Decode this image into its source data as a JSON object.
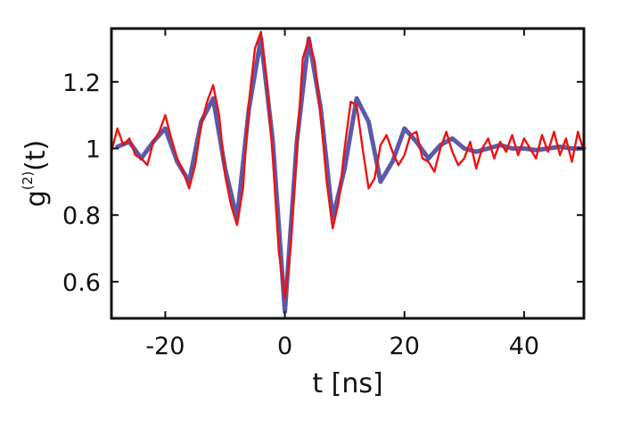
{
  "chart_data": {
    "type": "line",
    "xlabel": "t [ns]",
    "ylabel": {
      "base": "g",
      "superscript": "(2)",
      "suffix": "(t)"
    },
    "xlim": [
      -29,
      50
    ],
    "ylim": [
      0.49,
      1.36
    ],
    "xticks": [
      -20,
      0,
      20,
      40
    ],
    "yticks": [
      0.6,
      0.8,
      1.0,
      1.2
    ],
    "xtick_labels": [
      "-20",
      "0",
      "20",
      "40"
    ],
    "ytick_labels": [
      "0.6",
      "0.8",
      "1",
      "1.2"
    ],
    "grid": false,
    "series": [
      {
        "color": "#5a5aa8",
        "style": "fit",
        "x": [
          -28,
          -26,
          -24,
          -22,
          -20,
          -18,
          -16,
          -14,
          -12,
          -10,
          -8,
          -6,
          -4,
          -2,
          0,
          2,
          4,
          6,
          8,
          10,
          12,
          14,
          16,
          18,
          20,
          22,
          24,
          26,
          28,
          30,
          32,
          34,
          36,
          38,
          40,
          42,
          44,
          46,
          48,
          50
        ],
        "y": [
          1.005,
          1.02,
          0.97,
          1.02,
          1.06,
          0.96,
          0.9,
          1.08,
          1.15,
          0.94,
          0.79,
          1.12,
          1.33,
          1.02,
          0.51,
          1.02,
          1.33,
          1.12,
          0.79,
          0.94,
          1.15,
          1.08,
          0.9,
          0.96,
          1.06,
          1.02,
          0.97,
          1.01,
          1.03,
          1.0,
          0.99,
          1.0,
          1.01,
          1.0,
          1.0,
          0.995,
          1.0,
          1.005,
          1.0,
          1.0
        ]
      },
      {
        "color": "#ee1111",
        "style": "data",
        "x": [
          -29,
          -28,
          -27,
          -26,
          -25,
          -24,
          -23,
          -22,
          -21,
          -20,
          -19,
          -18,
          -17,
          -16,
          -15,
          -14,
          -13,
          -12,
          -11,
          -10,
          -9,
          -8,
          -7,
          -6,
          -5,
          -4,
          -3,
          -2,
          -1,
          0,
          1,
          2,
          3,
          4,
          5,
          6,
          7,
          8,
          9,
          10,
          11,
          12,
          13,
          14,
          15,
          16,
          17,
          18,
          19,
          20,
          21,
          22,
          23,
          24,
          25,
          26,
          27,
          28,
          29,
          30,
          31,
          32,
          33,
          34,
          35,
          36,
          37,
          38,
          39,
          40,
          41,
          42,
          43,
          44,
          45,
          46,
          47,
          48,
          49,
          50
        ],
        "y": [
          0.99,
          1.06,
          1.01,
          1.03,
          0.98,
          0.97,
          0.95,
          1.02,
          1.05,
          1.1,
          1.03,
          0.97,
          0.93,
          0.88,
          0.95,
          1.07,
          1.14,
          1.19,
          1.1,
          0.92,
          0.83,
          0.77,
          0.88,
          1.14,
          1.3,
          1.35,
          1.2,
          0.97,
          0.69,
          0.55,
          0.71,
          1.0,
          1.27,
          1.33,
          1.26,
          1.1,
          0.9,
          0.76,
          0.84,
          1.0,
          1.14,
          1.13,
          1.0,
          0.88,
          0.91,
          1.01,
          1.04,
          0.99,
          0.95,
          0.98,
          1.04,
          1.05,
          0.97,
          0.96,
          0.93,
          1.0,
          1.05,
          0.99,
          0.95,
          0.97,
          1.02,
          0.94,
          1.0,
          1.03,
          0.97,
          1.02,
          0.99,
          1.04,
          0.98,
          1.03,
          1.0,
          0.97,
          1.04,
          0.99,
          1.05,
          0.98,
          1.03,
          0.96,
          1.05,
          0.99
        ]
      }
    ]
  }
}
